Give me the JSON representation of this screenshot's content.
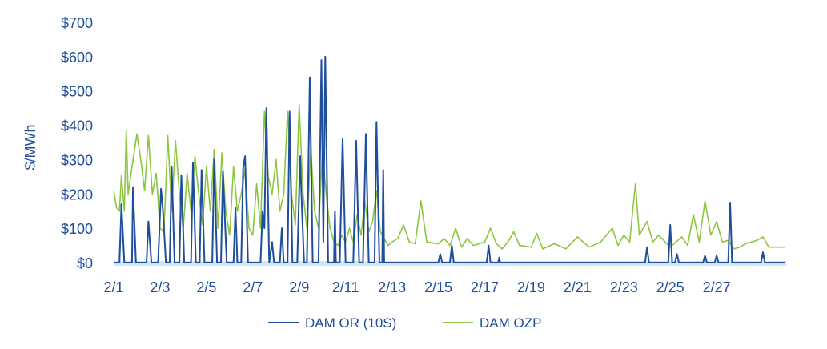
{
  "chart_data": {
    "type": "line",
    "ylabel": "$/MWh",
    "ylim": [
      0,
      700
    ],
    "y_ticks": [
      "$0",
      "$100",
      "$200",
      "$300",
      "$400",
      "$500",
      "$600",
      "$700"
    ],
    "y_tick_values": [
      0,
      100,
      200,
      300,
      400,
      500,
      600,
      700
    ],
    "x_start": "2/1",
    "x_end": "2/29",
    "x_ticks": [
      "2/1",
      "2/3",
      "2/5",
      "2/7",
      "2/9",
      "2/11",
      "2/13",
      "2/15",
      "2/17",
      "2/19",
      "2/21",
      "2/23",
      "2/25",
      "2/27"
    ],
    "legend_placement": "bottom-center",
    "colors": {
      "or": "#1f4e9c",
      "ozp": "#8cc63f",
      "baseline": "#cde7f5",
      "text": "#1f4e9c"
    },
    "series": [
      {
        "name": "DAM OR (10S)",
        "points": [
          [
            "2/1 00:00",
            0
          ],
          [
            "2/1 06:00",
            0
          ],
          [
            "2/1 08:00",
            170
          ],
          [
            "2/1 11:00",
            0
          ],
          [
            "2/1 19:00",
            0
          ],
          [
            "2/1 20:00",
            220
          ],
          [
            "2/1 23:00",
            0
          ],
          [
            "2/2 10:00",
            0
          ],
          [
            "2/2 12:00",
            120
          ],
          [
            "2/2 15:00",
            0
          ],
          [
            "2/2 22:00",
            0
          ],
          [
            "2/3 01:00",
            215
          ],
          [
            "2/3 03:00",
            150
          ],
          [
            "2/3 06:00",
            0
          ],
          [
            "2/3 10:00",
            0
          ],
          [
            "2/3 12:00",
            280
          ],
          [
            "2/3 15:00",
            0
          ],
          [
            "2/3 20:00",
            0
          ],
          [
            "2/3 22:00",
            255
          ],
          [
            "2/4 01:00",
            0
          ],
          [
            "2/4 08:00",
            0
          ],
          [
            "2/4 10:00",
            290
          ],
          [
            "2/4 13:00",
            0
          ],
          [
            "2/4 17:00",
            0
          ],
          [
            "2/4 19:00",
            270
          ],
          [
            "2/4 22:00",
            0
          ],
          [
            "2/5 06:00",
            0
          ],
          [
            "2/5 08:00",
            300
          ],
          [
            "2/5 11:00",
            0
          ],
          [
            "2/5 15:00",
            0
          ],
          [
            "2/5 17:00",
            265
          ],
          [
            "2/5 21:00",
            0
          ],
          [
            "2/6 04:00",
            0
          ],
          [
            "2/6 06:00",
            160
          ],
          [
            "2/6 08:00",
            0
          ],
          [
            "2/6 12:00",
            0
          ],
          [
            "2/6 14:00",
            275
          ],
          [
            "2/6 16:00",
            310
          ],
          [
            "2/6 19:00",
            0
          ],
          [
            "2/7 08:00",
            0
          ],
          [
            "2/7 10:00",
            150
          ],
          [
            "2/7 12:00",
            100
          ],
          [
            "2/7 14:00",
            450
          ],
          [
            "2/7 17:00",
            0
          ],
          [
            "2/7 20:00",
            60
          ],
          [
            "2/7 22:00",
            0
          ],
          [
            "2/8 04:00",
            0
          ],
          [
            "2/8 06:00",
            100
          ],
          [
            "2/8 08:00",
            0
          ],
          [
            "2/8 12:00",
            0
          ],
          [
            "2/8 14:00",
            440
          ],
          [
            "2/8 17:00",
            0
          ],
          [
            "2/8 22:00",
            0
          ],
          [
            "2/9 01:00",
            310
          ],
          [
            "2/9 03:00",
            150
          ],
          [
            "2/9 05:00",
            0
          ],
          [
            "2/9 08:00",
            0
          ],
          [
            "2/9 11:00",
            540
          ],
          [
            "2/9 14:00",
            0
          ],
          [
            "2/9 20:00",
            0
          ],
          [
            "2/9 23:00",
            590
          ],
          [
            "2/10 01:00",
            60
          ],
          [
            "2/10 03:00",
            600
          ],
          [
            "2/10 06:00",
            0
          ],
          [
            "2/10 12:00",
            0
          ],
          [
            "2/10 13:00",
            150
          ],
          [
            "2/10 14:00",
            0
          ],
          [
            "2/10 18:00",
            0
          ],
          [
            "2/10 21:00",
            360
          ],
          [
            "2/11 00:00",
            0
          ],
          [
            "2/11 08:00",
            0
          ],
          [
            "2/11 11:00",
            355
          ],
          [
            "2/11 14:00",
            0
          ],
          [
            "2/11 18:00",
            0
          ],
          [
            "2/11 21:00",
            375
          ],
          [
            "2/12 00:00",
            0
          ],
          [
            "2/12 06:00",
            0
          ],
          [
            "2/12 08:00",
            410
          ],
          [
            "2/12 11:00",
            0
          ],
          [
            "2/12 14:00",
            0
          ],
          [
            "2/12 15:00",
            270
          ],
          [
            "2/12 16:00",
            0
          ],
          [
            "2/15 00:00",
            0
          ],
          [
            "2/15 02:00",
            25
          ],
          [
            "2/15 04:00",
            0
          ],
          [
            "2/15 12:00",
            0
          ],
          [
            "2/15 14:00",
            50
          ],
          [
            "2/15 16:00",
            0
          ],
          [
            "2/17 02:00",
            0
          ],
          [
            "2/17 04:00",
            50
          ],
          [
            "2/17 06:00",
            0
          ],
          [
            "2/17 14:00",
            0
          ],
          [
            "2/17 15:00",
            15
          ],
          [
            "2/17 16:00",
            0
          ],
          [
            "2/23 22:00",
            0
          ],
          [
            "2/24 00:00",
            45
          ],
          [
            "2/24 02:00",
            0
          ],
          [
            "2/24 22:00",
            0
          ],
          [
            "2/25 00:00",
            110
          ],
          [
            "2/25 02:00",
            0
          ],
          [
            "2/25 05:00",
            0
          ],
          [
            "2/25 07:00",
            25
          ],
          [
            "2/25 09:00",
            0
          ],
          [
            "2/26 10:00",
            0
          ],
          [
            "2/26 12:00",
            20
          ],
          [
            "2/26 14:00",
            0
          ],
          [
            "2/26 22:00",
            0
          ],
          [
            "2/27 00:00",
            20
          ],
          [
            "2/27 02:00",
            0
          ],
          [
            "2/27 12:00",
            0
          ],
          [
            "2/27 14:00",
            175
          ],
          [
            "2/27 16:00",
            0
          ],
          [
            "2/28 22:00",
            0
          ],
          [
            "2/29 00:00",
            30
          ],
          [
            "2/29 02:00",
            0
          ],
          [
            "2/29 23:00",
            0
          ]
        ]
      },
      {
        "name": "DAM OZP",
        "points": [
          [
            "2/1 00:00",
            210
          ],
          [
            "2/1 03:00",
            160
          ],
          [
            "2/1 06:00",
            150
          ],
          [
            "2/1 08:00",
            255
          ],
          [
            "2/1 11:00",
            150
          ],
          [
            "2/1 13:00",
            385
          ],
          [
            "2/1 15:00",
            200
          ],
          [
            "2/1 18:00",
            260
          ],
          [
            "2/2 00:00",
            375
          ],
          [
            "2/2 04:00",
            300
          ],
          [
            "2/2 08:00",
            210
          ],
          [
            "2/2 12:00",
            370
          ],
          [
            "2/2 16:00",
            200
          ],
          [
            "2/2 20:00",
            260
          ],
          [
            "2/3 00:00",
            100
          ],
          [
            "2/3 04:00",
            90
          ],
          [
            "2/3 08:00",
            370
          ],
          [
            "2/3 12:00",
            150
          ],
          [
            "2/3 16:00",
            355
          ],
          [
            "2/3 20:00",
            200
          ],
          [
            "2/4 00:00",
            100
          ],
          [
            "2/4 04:00",
            260
          ],
          [
            "2/4 08:00",
            150
          ],
          [
            "2/4 12:00",
            310
          ],
          [
            "2/4 16:00",
            200
          ],
          [
            "2/4 20:00",
            110
          ],
          [
            "2/5 00:00",
            280
          ],
          [
            "2/5 04:00",
            150
          ],
          [
            "2/5 08:00",
            330
          ],
          [
            "2/5 12:00",
            100
          ],
          [
            "2/5 16:00",
            320
          ],
          [
            "2/5 20:00",
            150
          ],
          [
            "2/6 00:00",
            80
          ],
          [
            "2/6 04:00",
            280
          ],
          [
            "2/6 08:00",
            150
          ],
          [
            "2/6 12:00",
            200
          ],
          [
            "2/6 16:00",
            270
          ],
          [
            "2/6 20:00",
            100
          ],
          [
            "2/7 00:00",
            80
          ],
          [
            "2/7 04:00",
            230
          ],
          [
            "2/7 08:00",
            100
          ],
          [
            "2/7 12:00",
            440
          ],
          [
            "2/7 16:00",
            250
          ],
          [
            "2/7 20:00",
            200
          ],
          [
            "2/8 00:00",
            300
          ],
          [
            "2/8 04:00",
            150
          ],
          [
            "2/8 08:00",
            200
          ],
          [
            "2/8 12:00",
            440
          ],
          [
            "2/8 16:00",
            200
          ],
          [
            "2/8 20:00",
            110
          ],
          [
            "2/9 00:00",
            460
          ],
          [
            "2/9 04:00",
            200
          ],
          [
            "2/9 08:00",
            100
          ],
          [
            "2/9 12:00",
            330
          ],
          [
            "2/9 16:00",
            150
          ],
          [
            "2/9 20:00",
            100
          ],
          [
            "2/10 00:00",
            320
          ],
          [
            "2/10 04:00",
            200
          ],
          [
            "2/10 08:00",
            100
          ],
          [
            "2/10 12:00",
            60
          ],
          [
            "2/10 16:00",
            50
          ],
          [
            "2/10 20:00",
            80
          ],
          [
            "2/11 00:00",
            60
          ],
          [
            "2/11 04:00",
            100
          ],
          [
            "2/11 08:00",
            60
          ],
          [
            "2/11 12:00",
            140
          ],
          [
            "2/11 16:00",
            80
          ],
          [
            "2/11 20:00",
            180
          ],
          [
            "2/12 00:00",
            90
          ],
          [
            "2/12 04:00",
            120
          ],
          [
            "2/12 08:00",
            210
          ],
          [
            "2/12 12:00",
            90
          ],
          [
            "2/12 16:00",
            70
          ],
          [
            "2/12 20:00",
            50
          ],
          [
            "2/13 00:00",
            60
          ],
          [
            "2/13 06:00",
            70
          ],
          [
            "2/13 12:00",
            110
          ],
          [
            "2/13 18:00",
            60
          ],
          [
            "2/14 00:00",
            55
          ],
          [
            "2/14 06:00",
            180
          ],
          [
            "2/14 12:00",
            60
          ],
          [
            "2/15 00:00",
            55
          ],
          [
            "2/15 06:00",
            70
          ],
          [
            "2/15 12:00",
            50
          ],
          [
            "2/15 18:00",
            100
          ],
          [
            "2/16 00:00",
            45
          ],
          [
            "2/16 06:00",
            70
          ],
          [
            "2/16 12:00",
            50
          ],
          [
            "2/17 00:00",
            60
          ],
          [
            "2/17 06:00",
            100
          ],
          [
            "2/17 12:00",
            55
          ],
          [
            "2/17 18:00",
            40
          ],
          [
            "2/18 00:00",
            60
          ],
          [
            "2/18 06:00",
            90
          ],
          [
            "2/18 12:00",
            50
          ],
          [
            "2/19 00:00",
            45
          ],
          [
            "2/19 06:00",
            85
          ],
          [
            "2/19 12:00",
            40
          ],
          [
            "2/20 00:00",
            55
          ],
          [
            "2/20 12:00",
            40
          ],
          [
            "2/21 00:00",
            75
          ],
          [
            "2/21 12:00",
            45
          ],
          [
            "2/22 00:00",
            60
          ],
          [
            "2/22 12:00",
            100
          ],
          [
            "2/22 18:00",
            50
          ],
          [
            "2/23 00:00",
            80
          ],
          [
            "2/23 06:00",
            60
          ],
          [
            "2/23 12:00",
            230
          ],
          [
            "2/23 16:00",
            80
          ],
          [
            "2/24 00:00",
            120
          ],
          [
            "2/24 06:00",
            60
          ],
          [
            "2/24 12:00",
            80
          ],
          [
            "2/25 00:00",
            45
          ],
          [
            "2/25 06:00",
            60
          ],
          [
            "2/25 12:00",
            75
          ],
          [
            "2/25 18:00",
            50
          ],
          [
            "2/26 00:00",
            140
          ],
          [
            "2/26 06:00",
            60
          ],
          [
            "2/26 12:00",
            180
          ],
          [
            "2/26 18:00",
            80
          ],
          [
            "2/27 00:00",
            120
          ],
          [
            "2/27 06:00",
            60
          ],
          [
            "2/27 12:00",
            65
          ],
          [
            "2/27 18:00",
            40
          ],
          [
            "2/28 00:00",
            45
          ],
          [
            "2/28 06:00",
            55
          ],
          [
            "2/28 12:00",
            60
          ],
          [
            "2/28 18:00",
            65
          ],
          [
            "2/29 00:00",
            75
          ],
          [
            "2/29 06:00",
            45
          ],
          [
            "2/29 23:00",
            45
          ]
        ]
      }
    ]
  }
}
